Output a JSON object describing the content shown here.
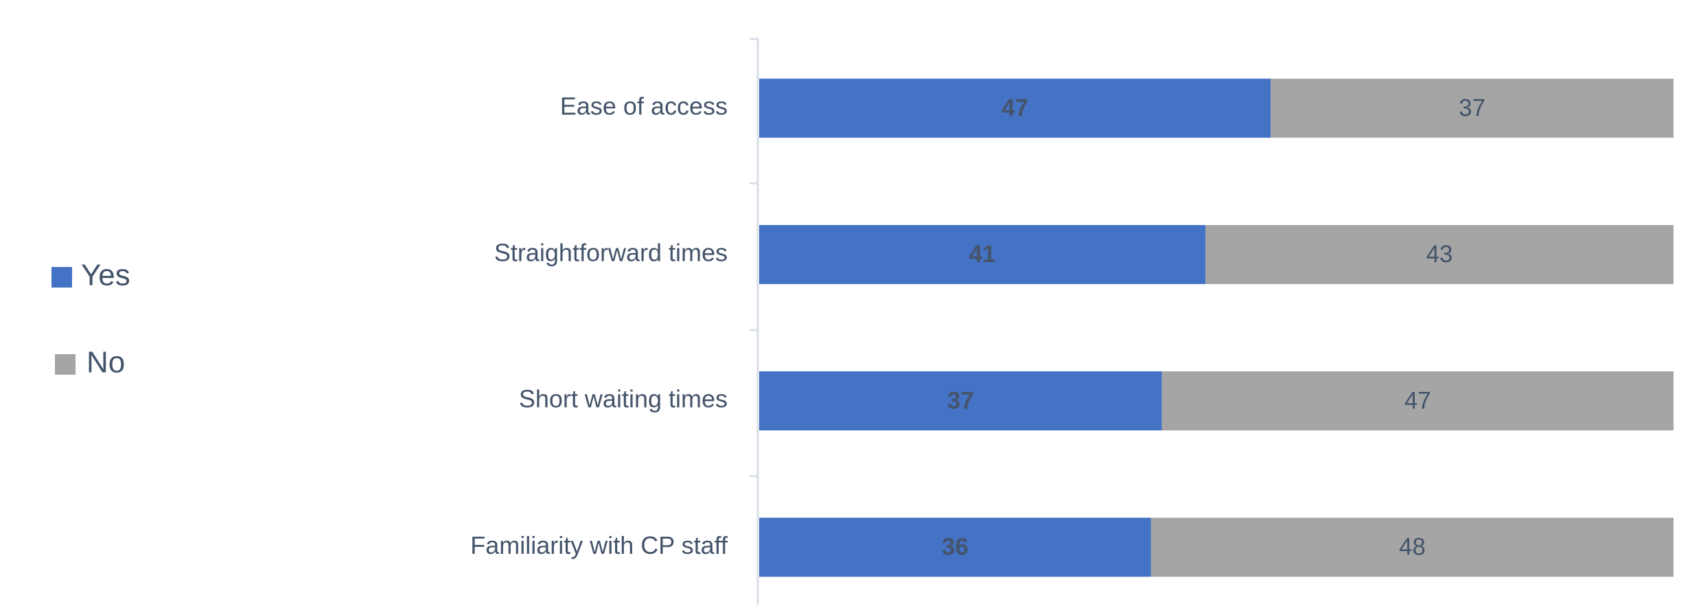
{
  "chart_data": {
    "type": "bar",
    "orientation": "horizontal",
    "stacked": true,
    "categories": [
      "Ease of access",
      "Straightforward times",
      "Short waiting times",
      "Familiarity with CP staff"
    ],
    "series": [
      {
        "name": "Yes",
        "color": "#4472c4",
        "values": [
          47,
          41,
          37,
          36
        ]
      },
      {
        "name": "No",
        "color": "#a5a5a5",
        "values": [
          37,
          43,
          47,
          48
        ]
      }
    ],
    "xlim": [
      0,
      84
    ],
    "legend": "left"
  }
}
